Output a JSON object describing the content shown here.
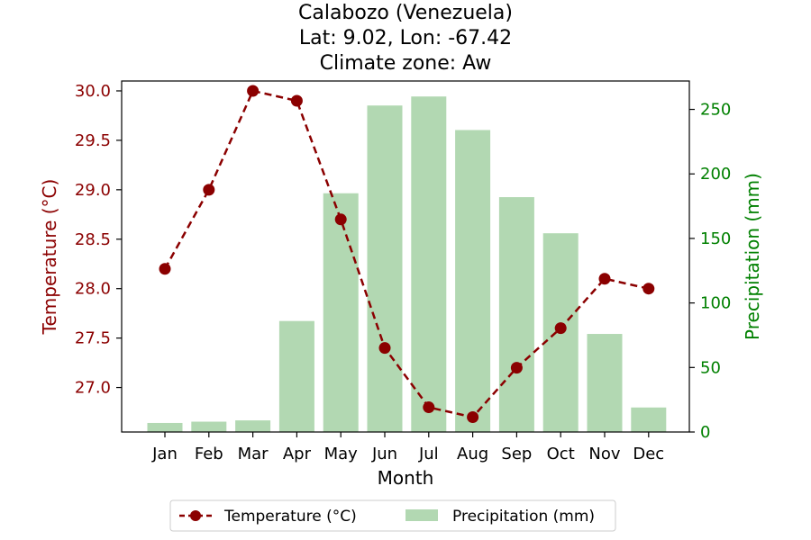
{
  "chart_data": {
    "type": "bar+line",
    "title_lines": [
      "Calabozo (Venezuela)",
      "Lat: 9.02, Lon: -67.42",
      "Climate zone: Aw"
    ],
    "xlabel": "Month",
    "ylabel_left": "Temperature (°C)",
    "ylabel_right": "Precipitation (mm)",
    "categories": [
      "Jan",
      "Feb",
      "Mar",
      "Apr",
      "May",
      "Jun",
      "Jul",
      "Aug",
      "Sep",
      "Oct",
      "Nov",
      "Dec"
    ],
    "temperature": {
      "name": "Temperature (°C)",
      "color": "#8b0000",
      "values": [
        28.2,
        29.0,
        30.0,
        29.9,
        28.7,
        27.4,
        26.8,
        26.7,
        27.2,
        27.6,
        28.1,
        28.0
      ]
    },
    "precipitation": {
      "name": "Precipitation (mm)",
      "color": "#b2d8b2",
      "values": [
        7,
        8,
        9,
        86,
        185,
        253,
        260,
        234,
        182,
        154,
        76,
        19
      ]
    },
    "left_axis": {
      "min": 26.55,
      "max": 30.1,
      "ticks": [
        "27.0",
        "27.5",
        "28.0",
        "28.5",
        "29.0",
        "29.5",
        "30.0"
      ],
      "color": "#8b0000"
    },
    "right_axis": {
      "min": 0,
      "max": 272,
      "ticks": [
        "0",
        "50",
        "100",
        "150",
        "200",
        "250"
      ],
      "color": "#008000"
    },
    "grid": false,
    "legend_position": "bottom-center"
  }
}
